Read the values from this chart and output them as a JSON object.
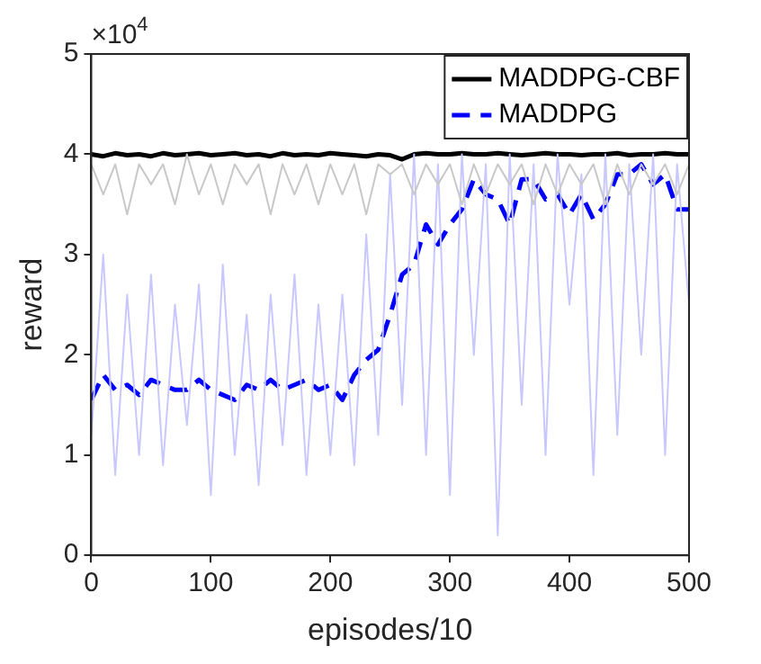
{
  "chart_data": {
    "type": "line",
    "xlabel": "episodes/10",
    "ylabel": "reward",
    "annotations": [
      "×10$^{4}$"
    ],
    "x": [
      0,
      10,
      20,
      30,
      40,
      50,
      60,
      70,
      80,
      90,
      100,
      110,
      120,
      130,
      140,
      150,
      160,
      170,
      180,
      190,
      200,
      210,
      220,
      230,
      240,
      250,
      260,
      270,
      280,
      290,
      300,
      310,
      320,
      330,
      340,
      350,
      360,
      370,
      380,
      390,
      400,
      410,
      420,
      430,
      440,
      450,
      460,
      470,
      480,
      490,
      500
    ],
    "xlim": [
      0,
      500
    ],
    "xticks": [
      0,
      100,
      200,
      300,
      400,
      500
    ],
    "ylim": [
      0,
      5
    ],
    "yticks": [
      0,
      1,
      2,
      3,
      4,
      5
    ],
    "grid": false,
    "legend": "top right",
    "marker": "none",
    "series": [
      {
        "color": "#c8c8c8",
        "line_style": "solid",
        "values": [
          3.9,
          3.6,
          3.9,
          3.4,
          3.9,
          3.7,
          3.9,
          3.5,
          4.0,
          3.6,
          3.9,
          3.5,
          3.9,
          3.7,
          3.9,
          3.4,
          3.9,
          3.6,
          3.9,
          3.5,
          3.9,
          3.6,
          3.9,
          3.4,
          3.9,
          3.8,
          3.9,
          3.6,
          3.9,
          3.7,
          3.9,
          3.5,
          3.9,
          3.6,
          3.9,
          3.7,
          3.9,
          3.5,
          3.9,
          3.6,
          3.9,
          3.7,
          3.9,
          3.5,
          3.9,
          3.6,
          3.9,
          3.7,
          3.9,
          3.6,
          3.9
        ]
      },
      {
        "color": "#c8c8ff",
        "line_style": "solid",
        "values": [
          1.2,
          3.0,
          0.8,
          2.6,
          1.0,
          2.8,
          0.9,
          2.5,
          1.3,
          2.7,
          0.6,
          2.9,
          1.0,
          2.4,
          0.7,
          2.6,
          1.1,
          2.8,
          0.8,
          2.5,
          1.0,
          2.6,
          0.9,
          3.2,
          1.2,
          3.8,
          1.5,
          4.0,
          1.0,
          3.9,
          0.6,
          4.0,
          2.0,
          3.9,
          0.2,
          4.0,
          1.5,
          3.9,
          1.0,
          4.0,
          2.5,
          3.8,
          0.8,
          4.0,
          1.2,
          3.9,
          2.0,
          4.0,
          1.0,
          3.9,
          2.5
        ]
      },
      {
        "name": "MADDPG-CBF",
        "color": "#000000",
        "line_style": "solid",
        "values": [
          4.0,
          3.98,
          4.01,
          3.99,
          4.0,
          3.98,
          4.01,
          3.99,
          4.0,
          4.01,
          3.99,
          4.0,
          4.01,
          3.99,
          4.0,
          3.98,
          4.01,
          3.99,
          4.0,
          3.99,
          4.01,
          4.0,
          3.99,
          3.98,
          4.0,
          3.99,
          3.95,
          4.0,
          4.01,
          4.0,
          4.0,
          4.01,
          4.0,
          4.0,
          4.01,
          4.0,
          3.99,
          4.0,
          4.01,
          4.0,
          4.0,
          3.99,
          4.0,
          4.0,
          4.01,
          3.99,
          4.0,
          4.0,
          4.01,
          4.0,
          4.0
        ]
      },
      {
        "name": "MADDPG",
        "color": "#0000ff",
        "line_style": "dashed",
        "values": [
          1.55,
          1.8,
          1.65,
          1.7,
          1.6,
          1.75,
          1.7,
          1.65,
          1.65,
          1.75,
          1.65,
          1.6,
          1.55,
          1.7,
          1.65,
          1.75,
          1.65,
          1.7,
          1.75,
          1.65,
          1.7,
          1.55,
          1.8,
          1.95,
          2.05,
          2.4,
          2.8,
          2.9,
          3.3,
          3.1,
          3.3,
          3.45,
          3.75,
          3.6,
          3.55,
          3.3,
          3.75,
          3.75,
          3.55,
          3.6,
          3.4,
          3.6,
          3.35,
          3.5,
          3.8,
          3.8,
          3.9,
          3.7,
          3.8,
          3.45,
          3.45
        ]
      }
    ]
  }
}
